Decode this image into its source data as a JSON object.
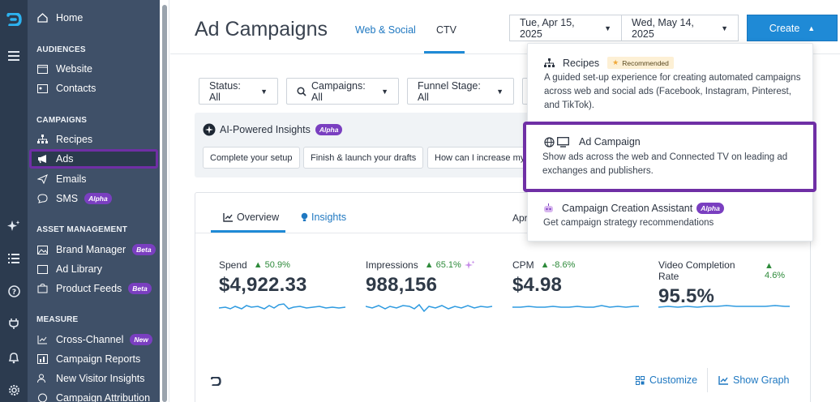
{
  "sidebar": {
    "home": "Home",
    "audiences_header": "AUDIENCES",
    "website": "Website",
    "contacts": "Contacts",
    "campaigns_header": "CAMPAIGNS",
    "recipes": "Recipes",
    "ads": "Ads",
    "emails": "Emails",
    "sms": "SMS",
    "sms_badge": "Alpha",
    "asset_header": "ASSET MANAGEMENT",
    "brand_manager": "Brand Manager",
    "brand_badge": "Beta",
    "ad_library": "Ad Library",
    "product_feeds": "Product Feeds",
    "product_badge": "Beta",
    "measure_header": "MEASURE",
    "cross_channel": "Cross-Channel",
    "cross_badge": "New",
    "campaign_reports": "Campaign Reports",
    "new_visitor": "New Visitor Insights",
    "campaign_attribution": "Campaign Attribution"
  },
  "header": {
    "title": "Ad Campaigns",
    "tab_web": "Web & Social",
    "tab_ctv": "CTV",
    "date_start": "Tue, Apr 15, 2025",
    "date_end": "Wed, May 14, 2025",
    "create": "Create"
  },
  "filters": {
    "status": "Status: All",
    "campaigns": "Campaigns: All",
    "funnel": "Funnel Stage: All"
  },
  "ai": {
    "title": "AI-Powered Insights",
    "badge": "Alpha",
    "chip1": "Complete your setup",
    "chip2": "Finish & launch your drafts",
    "chip3": "How can I increase my l"
  },
  "card": {
    "tab_overview": "Overview",
    "tab_insights": "Insights",
    "apr": "Apr",
    "metrics": [
      {
        "label": "Spend",
        "delta": "50.9%",
        "value": "$4,922.33"
      },
      {
        "label": "Impressions",
        "delta": "65.1%",
        "value": "988,156"
      },
      {
        "label": "CPM",
        "delta": "-8.6%",
        "value": "$4.98"
      },
      {
        "label": "Video Completion Rate",
        "delta": "4.6%",
        "value": "95.5%"
      }
    ],
    "customize": "Customize",
    "show_graph": "Show Graph"
  },
  "menu": {
    "recipes_title": "Recipes",
    "recipes_badge": "Recommended",
    "recipes_desc": "A guided set-up experience for creating automated campaigns across web and social ads (Facebook, Instagram, Pinterest, and TikTok).",
    "ad_title": "Ad Campaign",
    "ad_desc": "Show ads across the web and Connected TV on leading ad exchanges and publishers.",
    "assistant_title": "Campaign Creation Assistant",
    "assistant_badge": "Alpha",
    "assistant_desc": "Get campaign strategy recommendations"
  },
  "colors": {
    "accent": "#1f8ad6",
    "highlight": "#6f2fa5",
    "sidebar": "#3f5068",
    "rail": "#2c3b4f",
    "positive": "#2d8a3a"
  }
}
